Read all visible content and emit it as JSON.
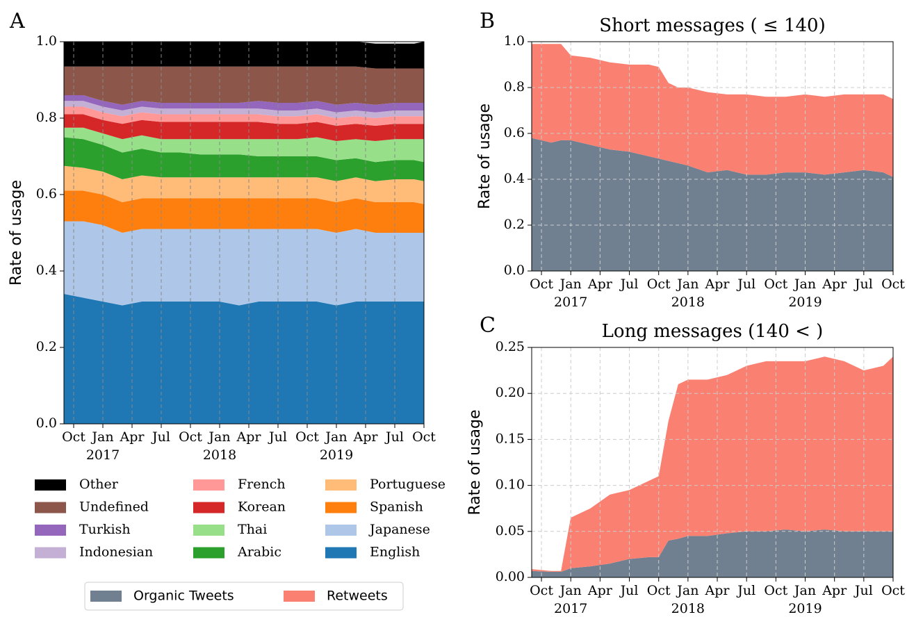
{
  "chart_data": [
    {
      "type": "stacked_area",
      "panel": "A",
      "y_label": "Rate of usage",
      "grid": "x",
      "x": [
        "2016-09",
        "2016-11",
        "2017-01",
        "2017-03",
        "2017-05",
        "2017-07",
        "2017-09",
        "2017-11",
        "2018-01",
        "2018-03",
        "2018-05",
        "2018-07",
        "2018-09",
        "2018-11",
        "2019-01",
        "2019-03",
        "2019-05",
        "2019-07",
        "2019-09",
        "2019-10"
      ],
      "xlim": [
        "2016-09",
        "2019-10"
      ],
      "xticks": [
        {
          "value": "2016-10",
          "label": "Oct"
        },
        {
          "value": "2017-01",
          "label": "Jan",
          "year": "2017"
        },
        {
          "value": "2017-04",
          "label": "Apr"
        },
        {
          "value": "2017-07",
          "label": "Jul"
        },
        {
          "value": "2017-10",
          "label": "Oct"
        },
        {
          "value": "2018-01",
          "label": "Jan",
          "year": "2018"
        },
        {
          "value": "2018-04",
          "label": "Apr"
        },
        {
          "value": "2018-07",
          "label": "Jul"
        },
        {
          "value": "2018-10",
          "label": "Oct"
        },
        {
          "value": "2019-01",
          "label": "Jan",
          "year": "2019"
        },
        {
          "value": "2019-04",
          "label": "Apr"
        },
        {
          "value": "2019-07",
          "label": "Jul"
        },
        {
          "value": "2019-10",
          "label": "Oct"
        }
      ],
      "ylim": [
        0,
        1
      ],
      "yticks": [
        {
          "value": 0,
          "label": "0.0"
        },
        0.2,
        0.4,
        0.6,
        0.8,
        {
          "value": 1,
          "label": "1.0"
        }
      ],
      "series": [
        {
          "name": "English",
          "color": "#1f77b4",
          "values": [
            0.34,
            0.33,
            0.32,
            0.31,
            0.32,
            0.32,
            0.32,
            0.32,
            0.32,
            0.31,
            0.32,
            0.32,
            0.32,
            0.32,
            0.31,
            0.32,
            0.32,
            0.32,
            0.32,
            0.32
          ]
        },
        {
          "name": "Japanese",
          "color": "#aec7e8",
          "values": [
            0.19,
            0.2,
            0.2,
            0.19,
            0.19,
            0.19,
            0.19,
            0.19,
            0.19,
            0.2,
            0.19,
            0.19,
            0.19,
            0.19,
            0.19,
            0.19,
            0.18,
            0.18,
            0.18,
            0.18
          ]
        },
        {
          "name": "Spanish",
          "color": "#ff7f0e",
          "values": [
            0.08,
            0.08,
            0.08,
            0.08,
            0.08,
            0.08,
            0.08,
            0.08,
            0.08,
            0.08,
            0.08,
            0.08,
            0.08,
            0.08,
            0.08,
            0.08,
            0.08,
            0.08,
            0.08,
            0.075
          ]
        },
        {
          "name": "Portuguese",
          "color": "#ffbb78",
          "values": [
            0.065,
            0.06,
            0.06,
            0.06,
            0.06,
            0.055,
            0.055,
            0.055,
            0.055,
            0.055,
            0.055,
            0.055,
            0.055,
            0.055,
            0.055,
            0.055,
            0.055,
            0.06,
            0.06,
            0.06
          ]
        },
        {
          "name": "Arabic",
          "color": "#2ca02c",
          "values": [
            0.075,
            0.075,
            0.07,
            0.07,
            0.07,
            0.065,
            0.065,
            0.06,
            0.06,
            0.06,
            0.055,
            0.055,
            0.055,
            0.055,
            0.055,
            0.05,
            0.05,
            0.05,
            0.05,
            0.05
          ]
        },
        {
          "name": "Thai",
          "color": "#98df8a",
          "values": [
            0.025,
            0.03,
            0.03,
            0.035,
            0.035,
            0.035,
            0.035,
            0.04,
            0.04,
            0.04,
            0.045,
            0.045,
            0.045,
            0.05,
            0.05,
            0.05,
            0.055,
            0.055,
            0.055,
            0.06
          ]
        },
        {
          "name": "Korean",
          "color": "#d62728",
          "values": [
            0.035,
            0.035,
            0.035,
            0.04,
            0.04,
            0.045,
            0.045,
            0.045,
            0.045,
            0.045,
            0.045,
            0.04,
            0.04,
            0.04,
            0.04,
            0.04,
            0.04,
            0.04,
            0.04,
            0.04
          ]
        },
        {
          "name": "French",
          "color": "#ff9896",
          "values": [
            0.02,
            0.02,
            0.02,
            0.02,
            0.02,
            0.02,
            0.02,
            0.02,
            0.02,
            0.02,
            0.02,
            0.02,
            0.02,
            0.02,
            0.02,
            0.02,
            0.02,
            0.02,
            0.02,
            0.02
          ]
        },
        {
          "name": "Indonesian",
          "color": "#c5b0d5",
          "values": [
            0.015,
            0.015,
            0.015,
            0.015,
            0.015,
            0.015,
            0.015,
            0.015,
            0.015,
            0.015,
            0.015,
            0.015,
            0.015,
            0.015,
            0.015,
            0.015,
            0.015,
            0.015,
            0.015,
            0.015
          ]
        },
        {
          "name": "Turkish",
          "color": "#9467bd",
          "values": [
            0.015,
            0.015,
            0.015,
            0.015,
            0.015,
            0.015,
            0.015,
            0.015,
            0.015,
            0.015,
            0.02,
            0.02,
            0.02,
            0.02,
            0.02,
            0.02,
            0.02,
            0.02,
            0.02,
            0.02
          ]
        },
        {
          "name": "Undefined",
          "color": "#8c564b",
          "values": [
            0.075,
            0.075,
            0.09,
            0.1,
            0.09,
            0.095,
            0.095,
            0.095,
            0.095,
            0.095,
            0.09,
            0.095,
            0.095,
            0.09,
            0.1,
            0.095,
            0.095,
            0.09,
            0.09,
            0.09
          ]
        },
        {
          "name": "Other",
          "color": "#000000",
          "values": [
            0.065,
            0.065,
            0.065,
            0.065,
            0.065,
            0.065,
            0.065,
            0.065,
            0.065,
            0.065,
            0.065,
            0.065,
            0.065,
            0.065,
            0.065,
            0.065,
            0.065,
            0.065,
            0.065,
            0.07
          ]
        }
      ]
    },
    {
      "type": "stacked_area",
      "panel": "B",
      "title": "Short messages ( ≤ 140)",
      "y_label": "Rate of usage",
      "grid": "both",
      "x": [
        "2016-09",
        "2016-11",
        "2016-12",
        "2017-01",
        "2017-03",
        "2017-05",
        "2017-07",
        "2017-09",
        "2017-10",
        "2017-11",
        "2017-12",
        "2018-01",
        "2018-03",
        "2018-05",
        "2018-07",
        "2018-09",
        "2018-11",
        "2019-01",
        "2019-03",
        "2019-05",
        "2019-07",
        "2019-09",
        "2019-10"
      ],
      "xlim": [
        "2016-09",
        "2019-10"
      ],
      "xticks": [
        {
          "value": "2016-10",
          "label": "Oct"
        },
        {
          "value": "2017-01",
          "label": "Jan",
          "year": "2017"
        },
        {
          "value": "2017-04",
          "label": "Apr"
        },
        {
          "value": "2017-07",
          "label": "Jul"
        },
        {
          "value": "2017-10",
          "label": "Oct"
        },
        {
          "value": "2018-01",
          "label": "Jan",
          "year": "2018"
        },
        {
          "value": "2018-04",
          "label": "Apr"
        },
        {
          "value": "2018-07",
          "label": "Jul"
        },
        {
          "value": "2018-10",
          "label": "Oct"
        },
        {
          "value": "2019-01",
          "label": "Jan",
          "year": "2019"
        },
        {
          "value": "2019-04",
          "label": "Apr"
        },
        {
          "value": "2019-07",
          "label": "Jul"
        },
        {
          "value": "2019-10",
          "label": "Oct"
        }
      ],
      "ylim": [
        0,
        1
      ],
      "yticks": [
        {
          "value": 0,
          "label": "0.0"
        },
        0.2,
        0.4,
        0.6,
        0.8,
        {
          "value": 1,
          "label": "1.0"
        }
      ],
      "series": [
        {
          "name": "Organic Tweets",
          "color": "#708090",
          "values": [
            0.58,
            0.56,
            0.57,
            0.57,
            0.55,
            0.53,
            0.52,
            0.5,
            0.49,
            0.48,
            0.47,
            0.46,
            0.43,
            0.44,
            0.42,
            0.42,
            0.43,
            0.43,
            0.42,
            0.43,
            0.44,
            0.43,
            0.41
          ]
        },
        {
          "name": "Retweets",
          "color": "#fa8072",
          "values": [
            0.41,
            0.43,
            0.42,
            0.37,
            0.38,
            0.38,
            0.38,
            0.4,
            0.4,
            0.34,
            0.33,
            0.34,
            0.35,
            0.33,
            0.35,
            0.34,
            0.33,
            0.34,
            0.34,
            0.34,
            0.33,
            0.34,
            0.34
          ]
        }
      ]
    },
    {
      "type": "stacked_area",
      "panel": "C",
      "title": "Long messages (140 < )",
      "y_label": "Rate of usage",
      "grid": "both",
      "x": [
        "2016-09",
        "2016-11",
        "2016-12",
        "2017-01",
        "2017-03",
        "2017-05",
        "2017-07",
        "2017-09",
        "2017-10",
        "2017-11",
        "2017-12",
        "2018-01",
        "2018-03",
        "2018-05",
        "2018-07",
        "2018-09",
        "2018-11",
        "2019-01",
        "2019-03",
        "2019-05",
        "2019-07",
        "2019-09",
        "2019-10"
      ],
      "xlim": [
        "2016-09",
        "2019-10"
      ],
      "xticks": [
        {
          "value": "2016-10",
          "label": "Oct"
        },
        {
          "value": "2017-01",
          "label": "Jan",
          "year": "2017"
        },
        {
          "value": "2017-04",
          "label": "Apr"
        },
        {
          "value": "2017-07",
          "label": "Jul"
        },
        {
          "value": "2017-10",
          "label": "Oct"
        },
        {
          "value": "2018-01",
          "label": "Jan",
          "year": "2018"
        },
        {
          "value": "2018-04",
          "label": "Apr"
        },
        {
          "value": "2018-07",
          "label": "Jul"
        },
        {
          "value": "2018-10",
          "label": "Oct"
        },
        {
          "value": "2019-01",
          "label": "Jan",
          "year": "2019"
        },
        {
          "value": "2019-04",
          "label": "Apr"
        },
        {
          "value": "2019-07",
          "label": "Jul"
        },
        {
          "value": "2019-10",
          "label": "Oct"
        }
      ],
      "ylim": [
        0,
        0.25
      ],
      "yticks": [
        {
          "value": 0,
          "label": "0.00"
        },
        0.05,
        {
          "value": 0.1,
          "label": "0.10"
        },
        0.15,
        {
          "value": 0.2,
          "label": "0.20"
        },
        0.25
      ],
      "series": [
        {
          "color": "#708090",
          "values": [
            0.007,
            0.006,
            0.006,
            0.01,
            0.012,
            0.015,
            0.02,
            0.022,
            0.022,
            0.04,
            0.042,
            0.045,
            0.045,
            0.048,
            0.05,
            0.05,
            0.052,
            0.05,
            0.052,
            0.05,
            0.05,
            0.05,
            0.05
          ]
        },
        {
          "color": "#fa8072",
          "values": [
            0.002,
            0.001,
            0.001,
            0.055,
            0.063,
            0.075,
            0.075,
            0.083,
            0.088,
            0.13,
            0.168,
            0.17,
            0.17,
            0.172,
            0.18,
            0.185,
            0.183,
            0.185,
            0.188,
            0.185,
            0.175,
            0.18,
            0.19
          ]
        }
      ]
    }
  ]
}
